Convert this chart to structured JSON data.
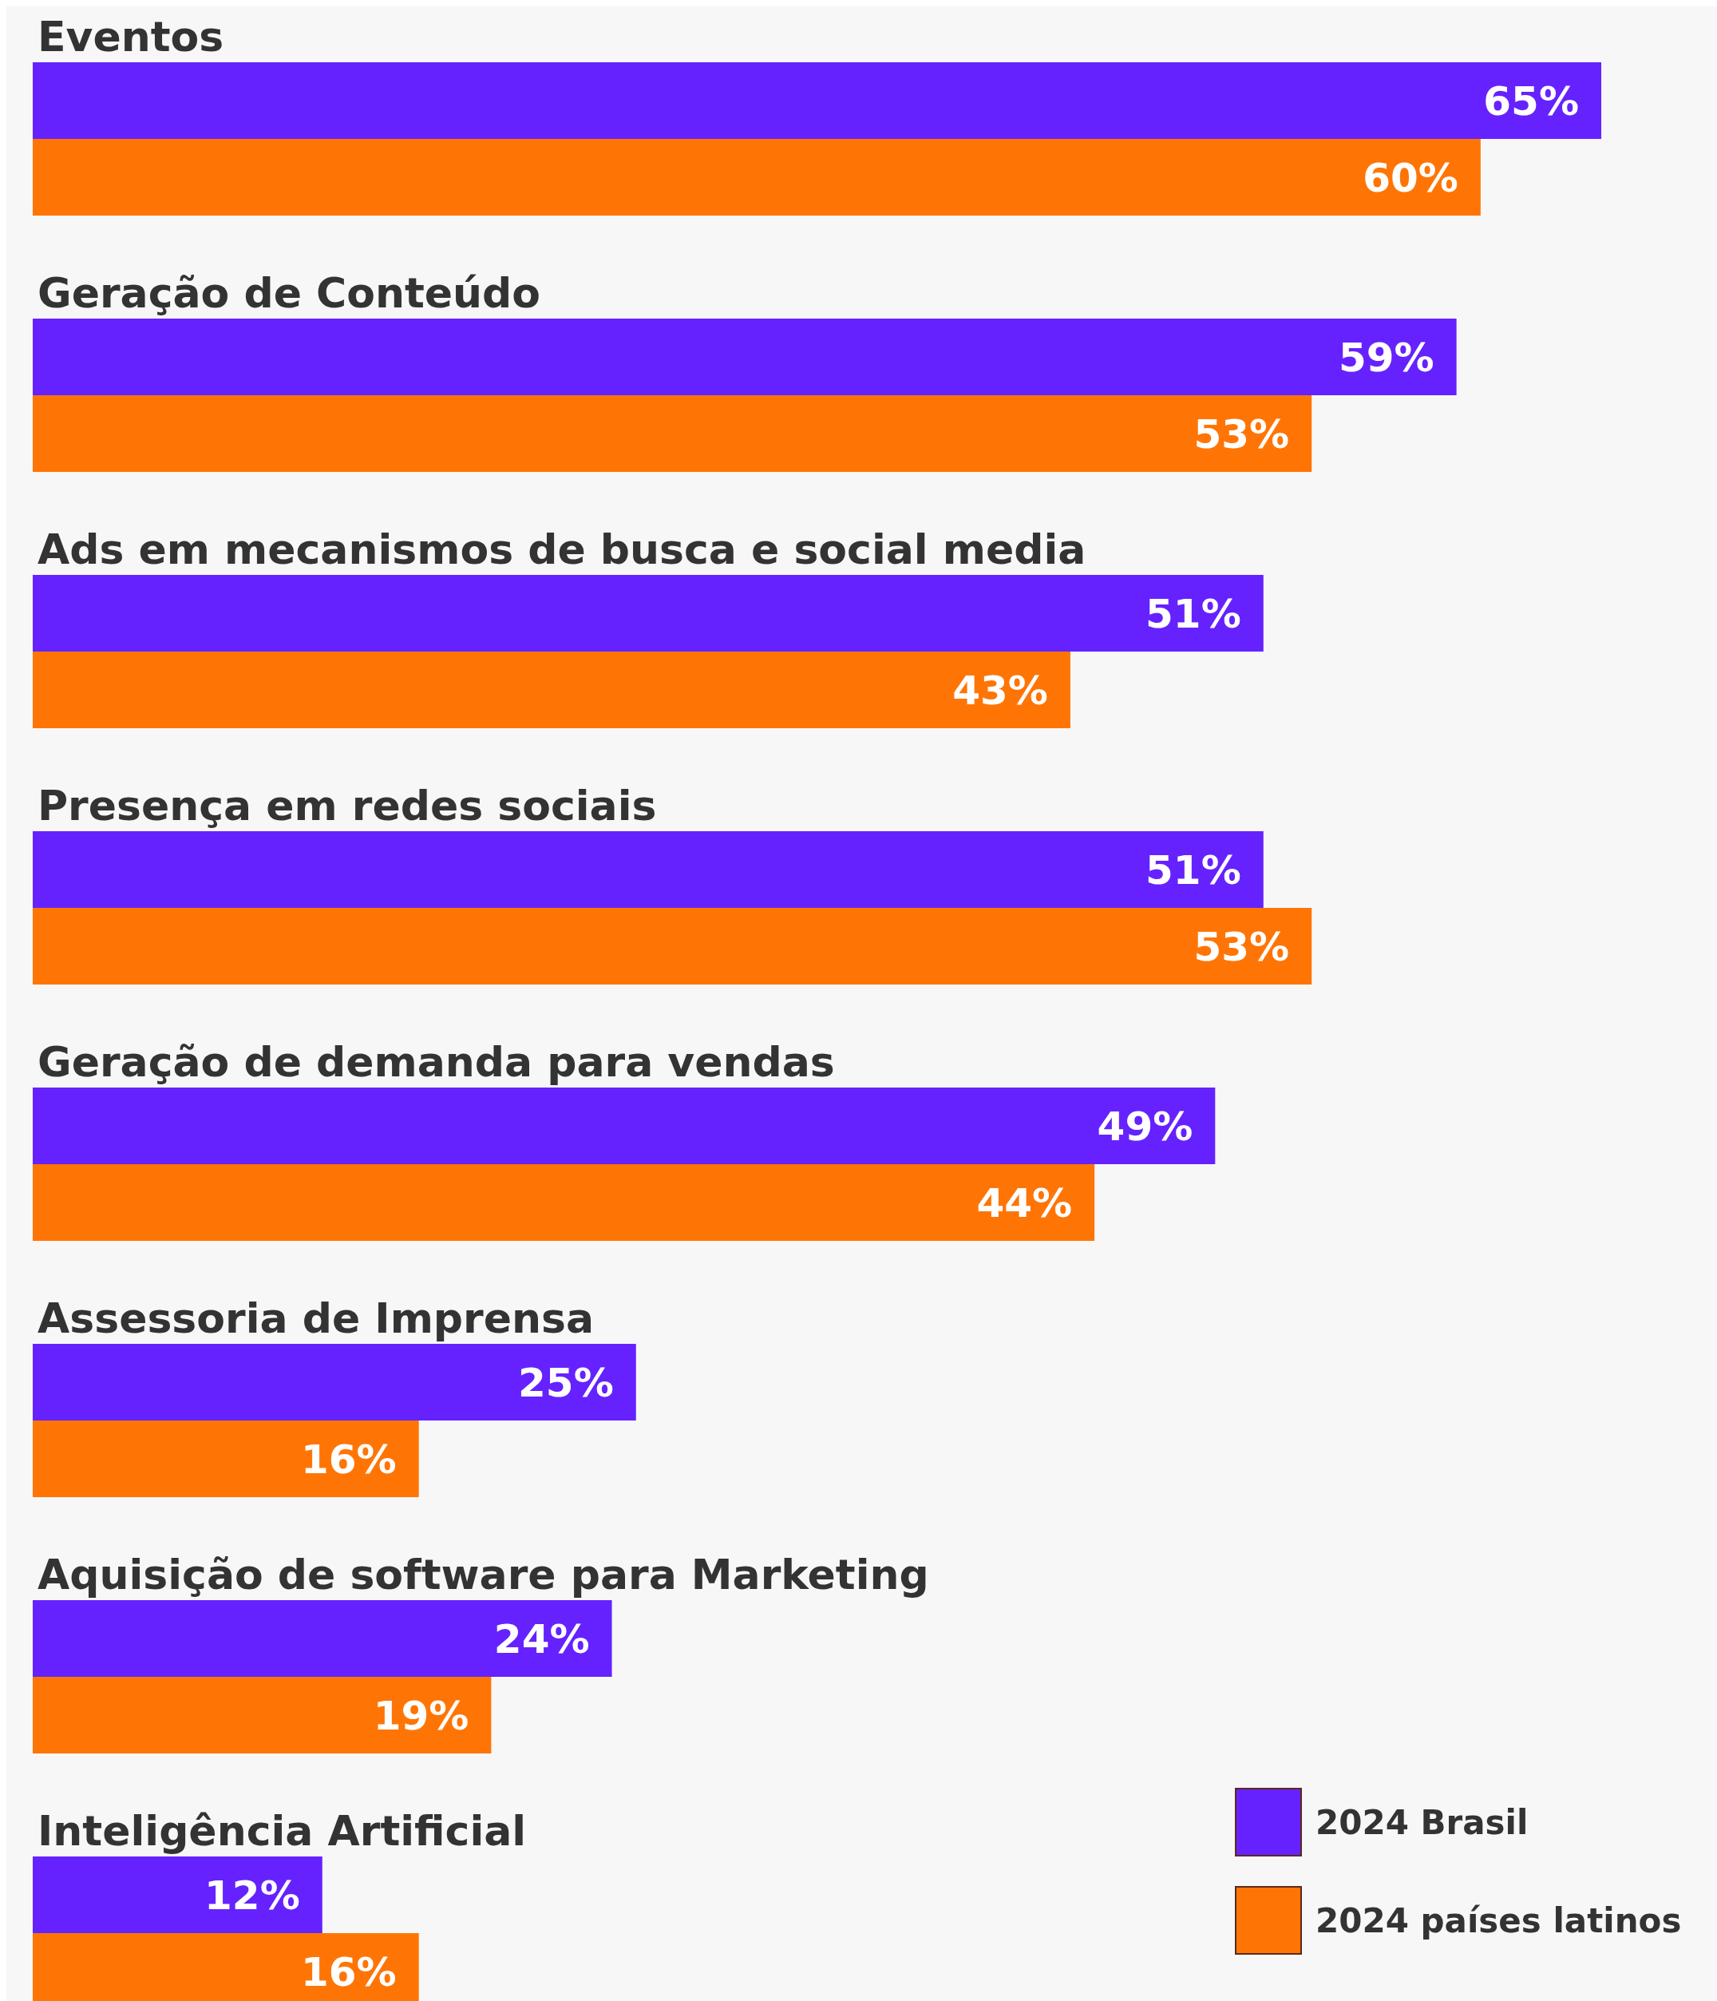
{
  "chart_data": {
    "type": "bar",
    "orientation": "horizontal",
    "categories": [
      "Eventos",
      "Geração de Conteúdo",
      "Ads em mecanismos de busca e social media",
      "Presença em redes sociais",
      "Geração de demanda para vendas",
      "Assessoria de Imprensa",
      "Aquisição de software para Marketing",
      "Inteligência Artificial"
    ],
    "series": [
      {
        "name": "2024 Brasil",
        "color": "#6522ff",
        "values": [
          65,
          59,
          51,
          51,
          49,
          25,
          24,
          12
        ],
        "value_labels": [
          "65%",
          "59%",
          "51%",
          "51%",
          "49%",
          "25%",
          "24%",
          "12%"
        ]
      },
      {
        "name": "2024 países latinos",
        "color": "#ff7505",
        "values": [
          60,
          53,
          43,
          53,
          44,
          16,
          19,
          16
        ],
        "value_labels": [
          "60%",
          "53%",
          "43%",
          "53%",
          "44%",
          "16%",
          "19%",
          "16%"
        ]
      }
    ],
    "legend": "bottom right"
  }
}
